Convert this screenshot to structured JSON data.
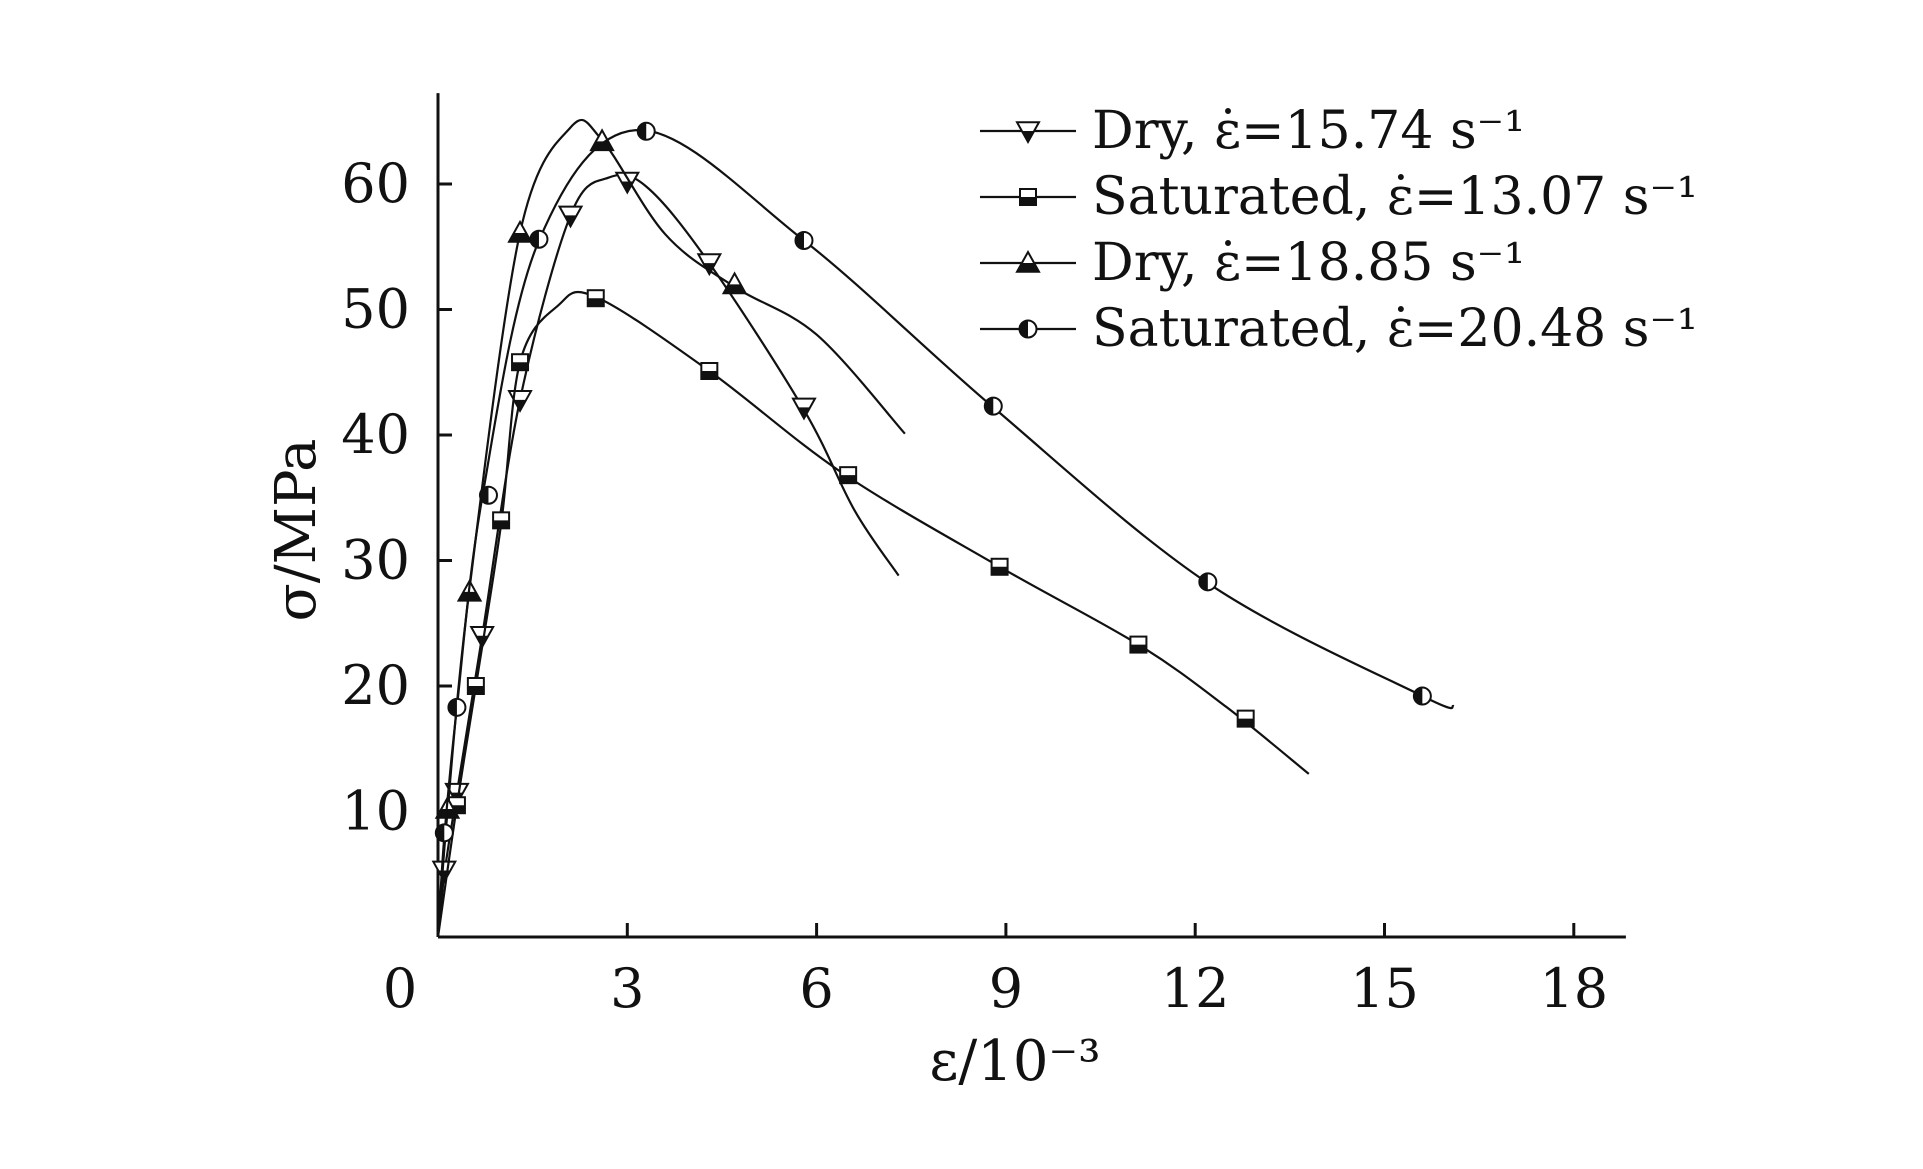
{
  "chart_data": {
    "type": "line",
    "xlabel": "ε/10⁻³",
    "ylabel": "σ/MPa",
    "xlim": [
      0,
      19
    ],
    "ylim": [
      0,
      67
    ],
    "x_ticks": [
      3,
      6,
      9,
      12,
      15,
      18
    ],
    "x_tick_labels": [
      "3",
      "6",
      "9",
      "12",
      "15",
      "18"
    ],
    "y_ticks": [
      10,
      20,
      30,
      40,
      50,
      60
    ],
    "y_tick_labels": [
      "10",
      "20",
      "30",
      "40",
      "50",
      "60"
    ],
    "origin_label": "0",
    "grid": false,
    "legend_position": "top-right",
    "series": [
      {
        "name": "Dry, ε̇=15.74 s⁻¹",
        "marker": "triangle-down",
        "color": "#111111",
        "curve": [
          [
            0,
            0
          ],
          [
            0.1,
            5
          ],
          [
            0.3,
            11.5
          ],
          [
            0.7,
            24
          ],
          [
            1.3,
            42.8
          ],
          [
            2.1,
            57.5
          ],
          [
            2.7,
            60.5
          ],
          [
            3.3,
            59.8
          ],
          [
            4.3,
            53.7
          ],
          [
            5.8,
            42
          ],
          [
            6.6,
            34
          ],
          [
            7.3,
            28.8
          ]
        ],
        "markers": [
          [
            0.1,
            5.3
          ],
          [
            0.3,
            11.5
          ],
          [
            0.7,
            24
          ],
          [
            1.3,
            42.8
          ],
          [
            2.1,
            57.5
          ],
          [
            3.0,
            60.2
          ],
          [
            4.3,
            53.7
          ],
          [
            5.8,
            42.2
          ]
        ]
      },
      {
        "name": "Saturated, ε̇=13.07 s⁻¹",
        "marker": "square",
        "color": "#111111",
        "curve": [
          [
            0,
            0
          ],
          [
            0.3,
            10.5
          ],
          [
            0.6,
            20
          ],
          [
            1.0,
            32.9
          ],
          [
            1.3,
            45.8
          ],
          [
            1.9,
            50.3
          ],
          [
            2.5,
            51
          ],
          [
            4.3,
            45.1
          ],
          [
            6.4,
            37
          ],
          [
            8.9,
            29.5
          ],
          [
            11.1,
            23.3
          ],
          [
            12.5,
            18.3
          ],
          [
            13.8,
            13
          ]
        ],
        "markers": [
          [
            0.3,
            10.5
          ],
          [
            0.6,
            20
          ],
          [
            1.0,
            33.2
          ],
          [
            1.3,
            45.8
          ],
          [
            2.5,
            50.9
          ],
          [
            4.3,
            45.1
          ],
          [
            6.5,
            36.8
          ],
          [
            8.9,
            29.5
          ],
          [
            11.1,
            23.3
          ],
          [
            12.8,
            17.4
          ]
        ]
      },
      {
        "name": "Dry, ε̇=18.85 s⁻¹",
        "marker": "triangle-up",
        "color": "#111111",
        "curve": [
          [
            0,
            0
          ],
          [
            0.15,
            10
          ],
          [
            0.5,
            27.8
          ],
          [
            1.3,
            56.1
          ],
          [
            2.1,
            64.5
          ],
          [
            2.6,
            63.5
          ],
          [
            3.6,
            56
          ],
          [
            4.7,
            51.8
          ],
          [
            6,
            48
          ],
          [
            7.4,
            40.1
          ]
        ],
        "markers": [
          [
            0.15,
            10.2
          ],
          [
            0.5,
            27.5
          ],
          [
            1.3,
            56.1
          ],
          [
            2.6,
            63.4
          ],
          [
            4.7,
            52
          ]
        ]
      },
      {
        "name": "Saturated, ε̇=20.48 s⁻¹",
        "marker": "circle-half",
        "color": "#111111",
        "curve": [
          [
            0,
            0
          ],
          [
            0.1,
            8
          ],
          [
            0.3,
            18.3
          ],
          [
            0.7,
            35
          ],
          [
            1.6,
            55.5
          ],
          [
            3.2,
            64.3
          ],
          [
            5.8,
            55.5
          ],
          [
            8.8,
            42.2
          ],
          [
            12.2,
            28.2
          ],
          [
            15.6,
            19.2
          ],
          [
            16.1,
            18.4
          ]
        ],
        "markers": [
          [
            0.1,
            8.3
          ],
          [
            0.3,
            18.3
          ],
          [
            0.8,
            35.2
          ],
          [
            1.6,
            55.6
          ],
          [
            3.3,
            64.2
          ],
          [
            5.8,
            55.5
          ],
          [
            8.8,
            42.3
          ],
          [
            12.2,
            28.3
          ],
          [
            15.6,
            19.2
          ]
        ]
      }
    ]
  }
}
